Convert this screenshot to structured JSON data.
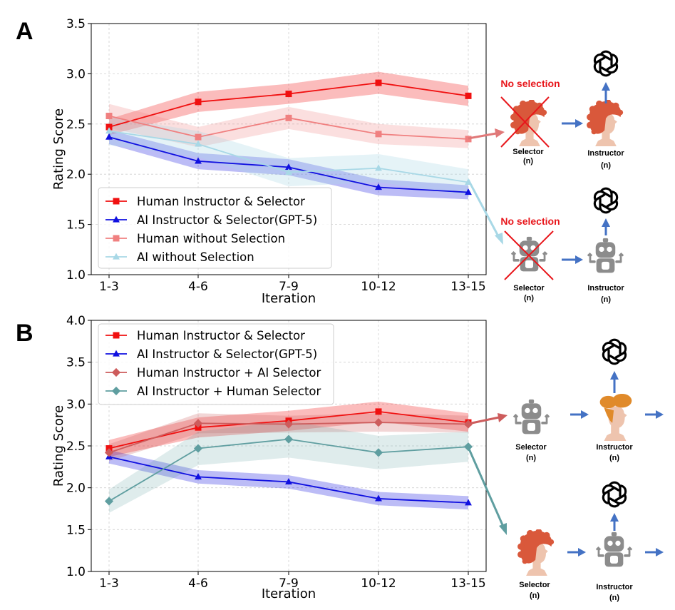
{
  "panels": {
    "a": "A",
    "b": "B"
  },
  "colors": {
    "human_sel": "#f01010",
    "ai_sel": "#1010e0",
    "human_nosel": "#f08080",
    "ai_nosel": "#a8d8e6",
    "human_ai_sel": "#cd5c5c",
    "ai_human_sel": "#5f9ea0",
    "arrow_blue": "#4472c4",
    "hair": "#d9583b",
    "hair_orange": "#e08a2a",
    "robot": "#8c8c8c",
    "skin": "#eec4ae"
  },
  "chart_data": [
    {
      "type": "line",
      "panel": "A",
      "xlabel": "Iteration",
      "ylabel": "Rating Score",
      "categories": [
        "1-3",
        "4-6",
        "7-9",
        "10-12",
        "13-15"
      ],
      "ylim": [
        1.0,
        3.5
      ],
      "yticks": [
        "1.0",
        "1.5",
        "2.0",
        "2.5",
        "3.0",
        "3.5"
      ],
      "grid": true,
      "legend_position": "lower-left",
      "series": [
        {
          "name": "Human Instructor & Selector",
          "marker": "square",
          "color_key": "human_sel",
          "values": [
            2.47,
            2.72,
            2.8,
            2.91,
            2.78
          ],
          "band": [
            0.08,
            0.1,
            0.1,
            0.11,
            0.1
          ],
          "band_alpha": 0.28
        },
        {
          "name": "AI Instructor & Selector(GPT-5)",
          "marker": "triangle",
          "color_key": "ai_sel",
          "values": [
            2.37,
            2.13,
            2.07,
            1.87,
            1.82
          ],
          "band": [
            0.07,
            0.08,
            0.08,
            0.08,
            0.07
          ],
          "band_alpha": 0.28
        },
        {
          "name": "Human without Selection",
          "marker": "square",
          "color_key": "human_nosel",
          "values": [
            2.58,
            2.37,
            2.56,
            2.4,
            2.35
          ],
          "band": [
            0.12,
            0.1,
            0.11,
            0.1,
            0.09
          ],
          "band_alpha": 0.25
        },
        {
          "name": "AI without Selection",
          "marker": "triangle",
          "color_key": "ai_nosel",
          "values": [
            2.43,
            2.3,
            2.02,
            2.06,
            1.92
          ],
          "band": [
            0.14,
            0.13,
            0.14,
            0.14,
            0.13
          ],
          "band_alpha": 0.3
        }
      ]
    },
    {
      "type": "line",
      "panel": "B",
      "xlabel": "Iteration",
      "ylabel": "Rating Score",
      "categories": [
        "1-3",
        "4-6",
        "7-9",
        "10-12",
        "13-15"
      ],
      "ylim": [
        1.0,
        4.0
      ],
      "yticks": [
        "1.0",
        "1.5",
        "2.0",
        "2.5",
        "3.0",
        "3.5",
        "4.0"
      ],
      "grid": true,
      "legend_position": "upper-left",
      "series": [
        {
          "name": "Human Instructor & Selector",
          "marker": "square",
          "color_key": "human_sel",
          "values": [
            2.47,
            2.72,
            2.8,
            2.91,
            2.78
          ],
          "band": [
            0.1,
            0.12,
            0.12,
            0.12,
            0.11
          ],
          "band_alpha": 0.28
        },
        {
          "name": "AI Instructor & Selector(GPT-5)",
          "marker": "triangle",
          "color_key": "ai_sel",
          "values": [
            2.37,
            2.13,
            2.07,
            1.87,
            1.82
          ],
          "band": [
            0.08,
            0.08,
            0.08,
            0.08,
            0.08
          ],
          "band_alpha": 0.28
        },
        {
          "name": "Human Instructor + AI Selector",
          "marker": "diamond",
          "color_key": "human_ai_sel",
          "values": [
            2.42,
            2.77,
            2.76,
            2.78,
            2.76
          ],
          "band": [
            0.1,
            0.12,
            0.1,
            0.11,
            0.1
          ],
          "band_alpha": 0.25
        },
        {
          "name": "AI Instructor + Human Selector",
          "marker": "diamond",
          "color_key": "ai_human_sel",
          "values": [
            1.84,
            2.47,
            2.58,
            2.42,
            2.49
          ],
          "band": [
            0.14,
            0.2,
            0.22,
            0.2,
            0.18
          ],
          "band_alpha": 0.2
        }
      ]
    }
  ],
  "diagram": {
    "no_selection": "No selection",
    "selector": "Selector",
    "instructor": "Instructor",
    "n": "(n)",
    "icons": [
      "openai-logo-icon",
      "human-head-icon",
      "robot-icon"
    ]
  }
}
